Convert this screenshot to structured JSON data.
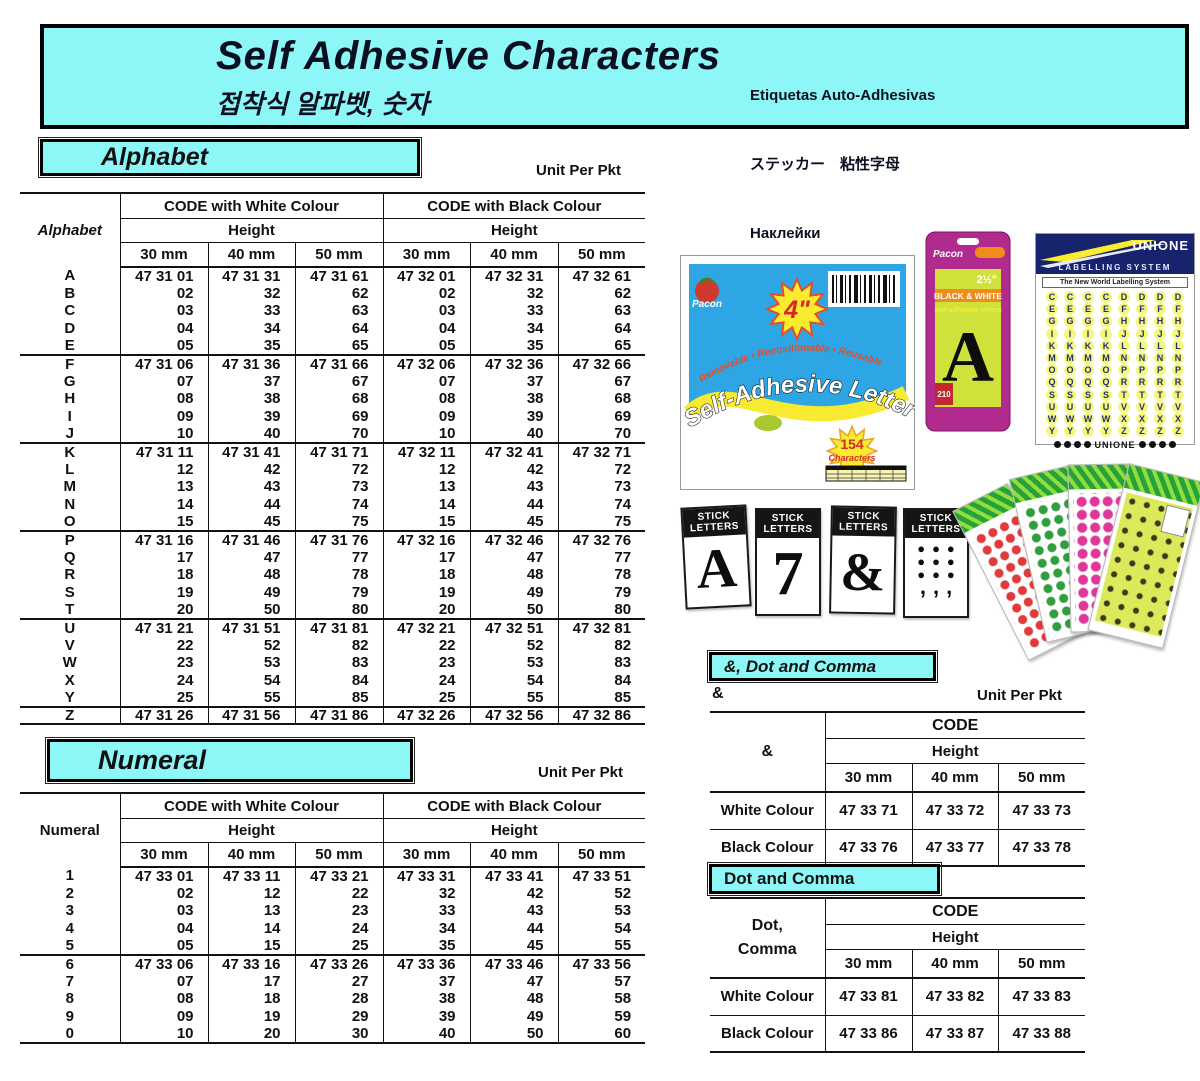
{
  "banner": {
    "title": "Self Adhesive Characters",
    "subtitle": "접착식 알파벳, 숫자",
    "translations": [
      "Etiquetas Auto-Adhesivas",
      "ステッカー　粘性字母",
      "Наклейки"
    ]
  },
  "alpha": {
    "box_title": "Alphabet",
    "unit": "Unit Per Pkt",
    "corner": "Alphabet",
    "white_header": "CODE with White Colour",
    "black_header": "CODE with Black Colour",
    "height": "Height",
    "sizes": [
      "30 mm",
      "40 mm",
      "50 mm"
    ],
    "groups": [
      [
        {
          "label": "A",
          "cells": [
            "47 31 01",
            "47 31 31",
            "47 31 61",
            "47 32 01",
            "47 32 31",
            "47 32 61"
          ]
        },
        {
          "label": "B",
          "cells": [
            "02",
            "32",
            "62",
            "02",
            "32",
            "62"
          ]
        },
        {
          "label": "C",
          "cells": [
            "03",
            "33",
            "63",
            "03",
            "33",
            "63"
          ]
        },
        {
          "label": "D",
          "cells": [
            "04",
            "34",
            "64",
            "04",
            "34",
            "64"
          ]
        },
        {
          "label": "E",
          "cells": [
            "05",
            "35",
            "65",
            "05",
            "35",
            "65"
          ]
        }
      ],
      [
        {
          "label": "F",
          "cells": [
            "47 31 06",
            "47 31 36",
            "47 31 66",
            "47 32 06",
            "47 32 36",
            "47 32 66"
          ]
        },
        {
          "label": "G",
          "cells": [
            "07",
            "37",
            "67",
            "07",
            "37",
            "67"
          ]
        },
        {
          "label": "H",
          "cells": [
            "08",
            "38",
            "68",
            "08",
            "38",
            "68"
          ]
        },
        {
          "label": "I",
          "cells": [
            "09",
            "39",
            "69",
            "09",
            "39",
            "69"
          ]
        },
        {
          "label": "J",
          "cells": [
            "10",
            "40",
            "70",
            "10",
            "40",
            "70"
          ]
        }
      ],
      [
        {
          "label": "K",
          "cells": [
            "47 31 11",
            "47 31 41",
            "47 31 71",
            "47 32 11",
            "47 32 41",
            "47 32 71"
          ]
        },
        {
          "label": "L",
          "cells": [
            "12",
            "42",
            "72",
            "12",
            "42",
            "72"
          ]
        },
        {
          "label": "M",
          "cells": [
            "13",
            "43",
            "73",
            "13",
            "43",
            "73"
          ]
        },
        {
          "label": "N",
          "cells": [
            "14",
            "44",
            "74",
            "14",
            "44",
            "74"
          ]
        },
        {
          "label": "O",
          "cells": [
            "15",
            "45",
            "75",
            "15",
            "45",
            "75"
          ]
        }
      ],
      [
        {
          "label": "P",
          "cells": [
            "47 31 16",
            "47 31 46",
            "47 31 76",
            "47 32 16",
            "47 32 46",
            "47 32 76"
          ]
        },
        {
          "label": "Q",
          "cells": [
            "17",
            "47",
            "77",
            "17",
            "47",
            "77"
          ]
        },
        {
          "label": "R",
          "cells": [
            "18",
            "48",
            "78",
            "18",
            "48",
            "78"
          ]
        },
        {
          "label": "S",
          "cells": [
            "19",
            "49",
            "79",
            "19",
            "49",
            "79"
          ]
        },
        {
          "label": "T",
          "cells": [
            "20",
            "50",
            "80",
            "20",
            "50",
            "80"
          ]
        }
      ],
      [
        {
          "label": "U",
          "cells": [
            "47 31 21",
            "47 31 51",
            "47 31 81",
            "47 32 21",
            "47 32 51",
            "47 32 81"
          ]
        },
        {
          "label": "V",
          "cells": [
            "22",
            "52",
            "82",
            "22",
            "52",
            "82"
          ]
        },
        {
          "label": "W",
          "cells": [
            "23",
            "53",
            "83",
            "23",
            "53",
            "83"
          ]
        },
        {
          "label": "X",
          "cells": [
            "24",
            "54",
            "84",
            "24",
            "54",
            "84"
          ]
        },
        {
          "label": "Y",
          "cells": [
            "25",
            "55",
            "85",
            "25",
            "55",
            "85"
          ]
        }
      ],
      [
        {
          "label": "Z",
          "cells": [
            "47 31 26",
            "47 31 56",
            "47 31 86",
            "47 32 26",
            "47 32 56",
            "47 32 86"
          ]
        }
      ]
    ]
  },
  "num": {
    "box_title": "Numeral",
    "unit": "Unit Per Pkt",
    "corner": "Numeral",
    "white_header": "CODE with White Colour",
    "black_header": "CODE with Black Colour",
    "height": "Height",
    "sizes": [
      "30 mm",
      "40 mm",
      "50 mm"
    ],
    "groups": [
      [
        {
          "label": "1",
          "cells": [
            "47 33 01",
            "47 33 11",
            "47 33 21",
            "47 33 31",
            "47 33 41",
            "47 33 51"
          ]
        },
        {
          "label": "2",
          "cells": [
            "02",
            "12",
            "22",
            "32",
            "42",
            "52"
          ]
        },
        {
          "label": "3",
          "cells": [
            "03",
            "13",
            "23",
            "33",
            "43",
            "53"
          ]
        },
        {
          "label": "4",
          "cells": [
            "04",
            "14",
            "24",
            "34",
            "44",
            "54"
          ]
        },
        {
          "label": "5",
          "cells": [
            "05",
            "15",
            "25",
            "35",
            "45",
            "55"
          ]
        }
      ],
      [
        {
          "label": "6",
          "cells": [
            "47 33 06",
            "47 33 16",
            "47 33 26",
            "47 33 36",
            "47 33 46",
            "47 33 56"
          ]
        },
        {
          "label": "7",
          "cells": [
            "07",
            "17",
            "27",
            "37",
            "47",
            "57"
          ]
        },
        {
          "label": "8",
          "cells": [
            "08",
            "18",
            "28",
            "38",
            "48",
            "58"
          ]
        },
        {
          "label": "9",
          "cells": [
            "09",
            "19",
            "29",
            "39",
            "49",
            "59"
          ]
        },
        {
          "label": "0",
          "cells": [
            "10",
            "20",
            "30",
            "40",
            "50",
            "60"
          ]
        }
      ]
    ]
  },
  "amp": {
    "box_title": "&, Dot and Comma",
    "symbol_label": "&",
    "unit": "Unit Per Pkt",
    "corner": "&",
    "code": "CODE",
    "height": "Height",
    "sizes": [
      "30 mm",
      "40 mm",
      "50 mm"
    ],
    "rows": [
      {
        "label": "White Colour",
        "cells": [
          "47 33 71",
          "47 33 72",
          "47 33 73"
        ]
      },
      {
        "label": "Black Colour",
        "cells": [
          "47 33 76",
          "47 33 77",
          "47 33 78"
        ]
      }
    ]
  },
  "dot": {
    "box_title": "Dot and Comma",
    "corner_line1": "Dot,",
    "corner_line2": "Comma",
    "code": "CODE",
    "height": "Height",
    "sizes": [
      "30 mm",
      "40 mm",
      "50 mm"
    ],
    "rows": [
      {
        "label": "White Colour",
        "cells": [
          "47 33 81",
          "47 33 82",
          "47 33 83"
        ]
      },
      {
        "label": "Black Colour",
        "cells": [
          "47 33 86",
          "47 33 87",
          "47 33 88"
        ]
      }
    ]
  },
  "photos": {
    "pacon": {
      "brand": "Pacon",
      "size_badge": "4\"",
      "tagline": "Removable • Repositionable • Reusable",
      "title": "Self-Adhesive Letters",
      "count_badge_num": "154",
      "count_badge_word": "Characters"
    },
    "blister": {
      "brand": "Pacon",
      "label": "BLACK & WHITE",
      "sublabel": "self-adhesive letters",
      "size": "2½\"",
      "letter": "A",
      "count": "210"
    },
    "unione": {
      "brand": "UNIONE",
      "system": "LABELLING SYSTEM",
      "strip": "The New World Labelling System",
      "footer": "UNIONE",
      "letter_rows": [
        [
          "C",
          "D"
        ],
        [
          "E",
          "F"
        ],
        [
          "G",
          "H"
        ],
        [
          "I",
          "J"
        ],
        [
          "K",
          "L"
        ],
        [
          "M",
          "N"
        ],
        [
          "O",
          "P"
        ],
        [
          "Q",
          "R"
        ],
        [
          "S",
          "T"
        ],
        [
          "U",
          "V"
        ],
        [
          "W",
          "X"
        ],
        [
          "Y",
          "Z"
        ]
      ]
    },
    "stick": {
      "header_line1": "STICK",
      "header_line2": "LETTERS",
      "glyphs": [
        "A",
        "7",
        "&"
      ],
      "dot_glyph": "●",
      "comma_glyph": ","
    }
  }
}
